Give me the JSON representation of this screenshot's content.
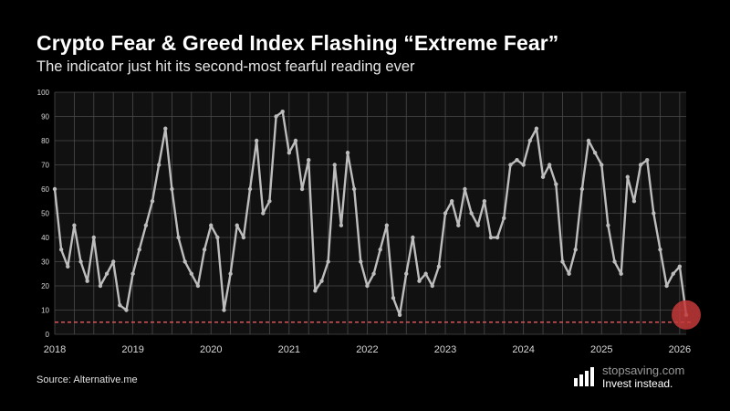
{
  "header": {
    "title": "Crypto Fear & Greed Index Flashing “Extreme Fear”",
    "subtitle": "The indicator just hit its second-most fearful reading ever"
  },
  "footer": {
    "source": "Source: Alternative.me",
    "brand_name": "stopsaving.com",
    "brand_tagline": "Invest instead.",
    "brand_icon": "bar-chart-icon"
  },
  "colors": {
    "background": "#000000",
    "plot_background": "#111111",
    "grid": "#4a4a4a",
    "series": "#bdbdbd",
    "reference_line": "#d9535a",
    "highlight": "#c43a3a"
  },
  "chart_data": {
    "type": "line",
    "title": "",
    "xlabel": "",
    "ylabel": "",
    "ylim": [
      0,
      100
    ],
    "yticks": [
      "0",
      "10",
      "20",
      "30",
      "40",
      "50",
      "60",
      "70",
      "80",
      "90",
      "100"
    ],
    "xlim": [
      "2018-01",
      "2026-02"
    ],
    "xticks": [
      "2018",
      "2019",
      "2020",
      "2021",
      "2022",
      "2023",
      "2024",
      "2025",
      "2026"
    ],
    "grid": true,
    "reference_line": {
      "y": 5,
      "style": "dashed"
    },
    "highlight": {
      "x": "2026-02",
      "y": 8,
      "shape": "circle"
    },
    "series": [
      {
        "x": [
          "2018-01",
          "2018-02",
          "2018-03",
          "2018-04",
          "2018-05",
          "2018-06",
          "2018-07",
          "2018-08",
          "2018-09",
          "2018-10",
          "2018-11",
          "2018-12",
          "2019-01",
          "2019-02",
          "2019-03",
          "2019-04",
          "2019-05",
          "2019-06",
          "2019-07",
          "2019-08",
          "2019-09",
          "2019-10",
          "2019-11",
          "2019-12",
          "2020-01",
          "2020-02",
          "2020-03",
          "2020-04",
          "2020-05",
          "2020-06",
          "2020-07",
          "2020-08",
          "2020-09",
          "2020-10",
          "2020-11",
          "2020-12",
          "2021-01",
          "2021-02",
          "2021-03",
          "2021-04",
          "2021-05",
          "2021-06",
          "2021-07",
          "2021-08",
          "2021-09",
          "2021-10",
          "2021-11",
          "2021-12",
          "2022-01",
          "2022-02",
          "2022-03",
          "2022-04",
          "2022-05",
          "2022-06",
          "2022-07",
          "2022-08",
          "2022-09",
          "2022-10",
          "2022-11",
          "2022-12",
          "2023-01",
          "2023-02",
          "2023-03",
          "2023-04",
          "2023-05",
          "2023-06",
          "2023-07",
          "2023-08",
          "2023-09",
          "2023-10",
          "2023-11",
          "2023-12",
          "2024-01",
          "2024-02",
          "2024-03",
          "2024-04",
          "2024-05",
          "2024-06",
          "2024-07",
          "2024-08",
          "2024-09",
          "2024-10",
          "2024-11",
          "2024-12",
          "2025-01",
          "2025-02",
          "2025-03",
          "2025-04",
          "2025-05",
          "2025-06",
          "2025-07",
          "2025-08",
          "2025-09",
          "2025-10",
          "2025-11",
          "2025-12",
          "2026-01",
          "2026-02"
        ],
        "values": [
          60,
          35,
          28,
          45,
          30,
          22,
          40,
          20,
          25,
          30,
          12,
          10,
          25,
          35,
          45,
          55,
          70,
          85,
          60,
          40,
          30,
          25,
          20,
          35,
          45,
          40,
          10,
          25,
          45,
          40,
          60,
          80,
          50,
          55,
          90,
          92,
          75,
          80,
          60,
          72,
          18,
          22,
          30,
          70,
          45,
          75,
          60,
          30,
          20,
          25,
          35,
          45,
          15,
          8,
          25,
          40,
          22,
          25,
          20,
          28,
          50,
          55,
          45,
          60,
          50,
          45,
          55,
          40,
          40,
          48,
          70,
          72,
          70,
          80,
          85,
          65,
          70,
          62,
          30,
          25,
          35,
          60,
          80,
          75,
          70,
          45,
          30,
          25,
          65,
          55,
          70,
          72,
          50,
          35,
          20,
          25,
          28,
          8
        ]
      }
    ]
  }
}
